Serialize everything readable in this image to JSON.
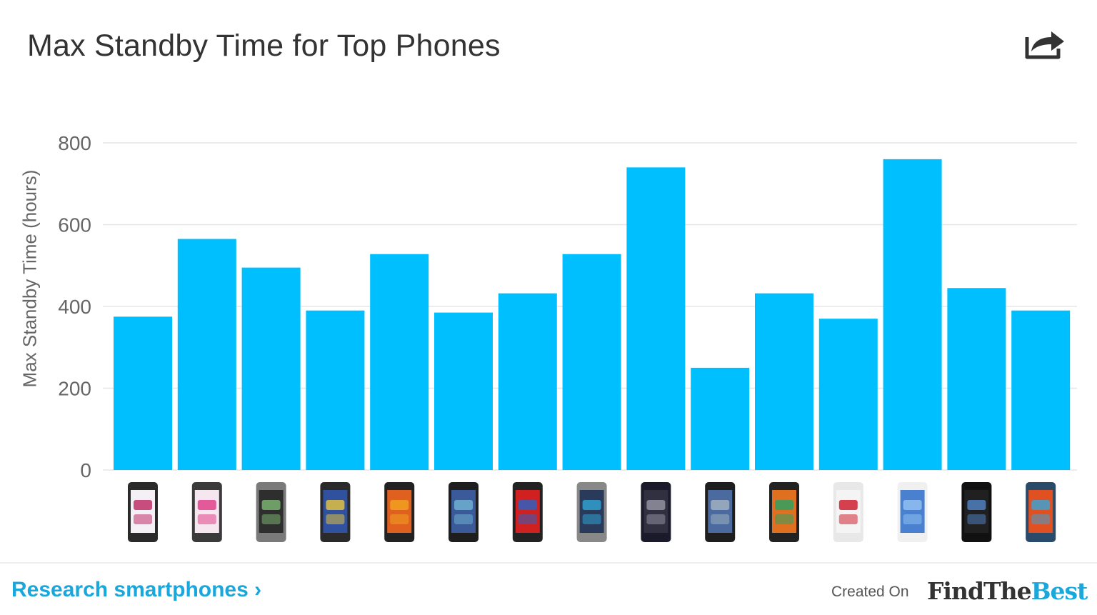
{
  "header": {
    "title": "Max Standby Time for Top Phones",
    "share_icon": "share-icon"
  },
  "chart_data": {
    "type": "bar",
    "title": "Max Standby Time for Top Phones",
    "xlabel": "",
    "ylabel": "Max Standby Time (hours)",
    "ylim": [
      0,
      800
    ],
    "yticks": [
      "0",
      "200",
      "400",
      "600",
      "800"
    ],
    "grid": true,
    "legend": "none",
    "categories": [
      "phone-1",
      "phone-2",
      "phone-3",
      "phone-4",
      "phone-5",
      "phone-6",
      "phone-7",
      "phone-8",
      "phone-9",
      "phone-10",
      "phone-11",
      "phone-12",
      "phone-13",
      "phone-14",
      "phone-15"
    ],
    "category_display": "phone thumbnail images",
    "values": [
      375,
      565,
      495,
      390,
      528,
      385,
      432,
      528,
      740,
      250,
      432,
      370,
      760,
      445,
      390
    ],
    "bar_color": "#00bfff"
  },
  "footer": {
    "research_link": "Research smartphones ›",
    "created_on": "Created On",
    "brand_part1": "FindThe",
    "brand_part2": "Best",
    "accent_color": "#1aa8dc"
  }
}
